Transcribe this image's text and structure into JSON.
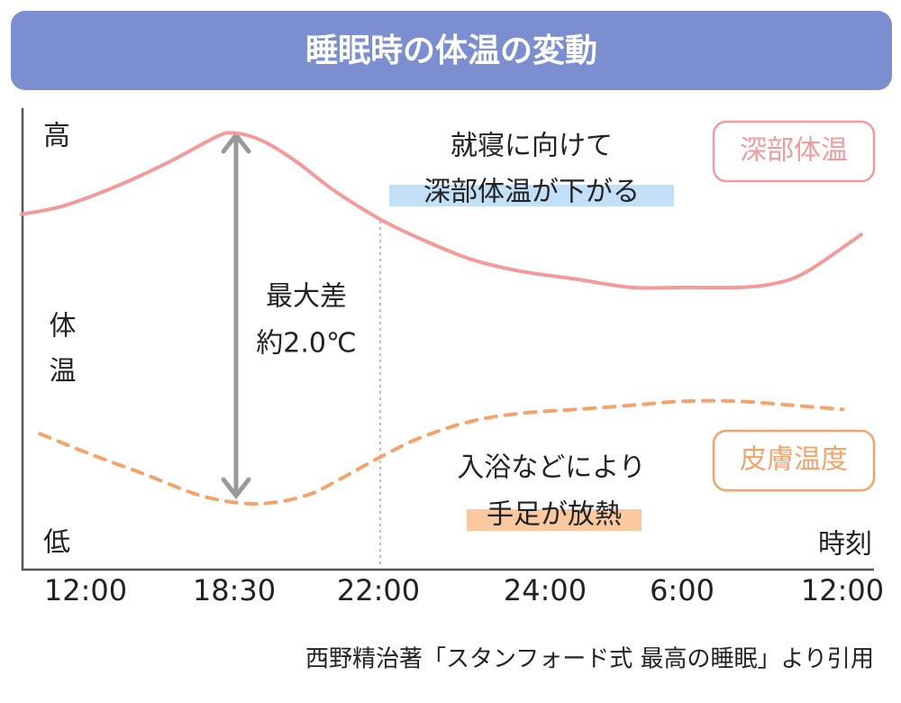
{
  "chart_data": {
    "type": "line",
    "title": "睡眠時の体温の変動",
    "ylabel": "体温",
    "xlabel": "時刻",
    "xlim": [
      -2.8,
      25.2
    ],
    "xticks": [
      {
        "value": 0,
        "label": "12:00"
      },
      {
        "value": 6.5,
        "label": "18:30"
      },
      {
        "value": 10,
        "label": "22:00"
      },
      {
        "value": 12,
        "label": "24:00"
      },
      {
        "value": 18,
        "label": "6:00"
      },
      {
        "value": 24,
        "label": "12:00"
      }
    ],
    "ylim": [
      0,
      10
    ],
    "yticks": [
      {
        "value": 10,
        "label": "高"
      },
      {
        "value": 0,
        "label": "低"
      }
    ],
    "series": [
      {
        "name": "深部体温",
        "color": "#f39a9a",
        "dashed": false,
        "x": [
          -2.8,
          -1.0,
          1.4,
          3.7,
          5.7,
          6.5,
          7.2,
          8.0,
          8.9,
          10,
          10.5,
          11.1,
          11.7,
          13.4,
          15.8,
          18.1,
          20.1,
          21.5,
          22.7,
          24.7
        ],
        "values": [
          8.1,
          8.3,
          8.8,
          9.4,
          10.0,
          10.1,
          9.9,
          9.4,
          8.7,
          8.0,
          7.5,
          7.0,
          6.7,
          6.5,
          6.3,
          6.3,
          6.3,
          6.4,
          6.7,
          7.6
        ]
      },
      {
        "name": "皮膚温度",
        "color": "#f4a36a",
        "dashed": true,
        "x": [
          -2.0,
          0.2,
          2.6,
          4.9,
          6.6,
          7.4,
          8.3,
          9.1,
          10,
          10.5,
          11.1,
          11.7,
          13.4,
          15.8,
          18.1,
          20.1,
          22.1,
          24
        ],
        "values": [
          2.7,
          2.2,
          1.7,
          1.2,
          1.0,
          1.0,
          1.2,
          1.6,
          2.1,
          2.6,
          3.0,
          3.2,
          3.3,
          3.4,
          3.5,
          3.5,
          3.4,
          3.3
        ]
      }
    ],
    "annotations": [
      "就寝に向けて",
      "深部体温が下がる",
      "最大差",
      "約2.0℃",
      "入浴などにより",
      "手足が放熱"
    ]
  },
  "source": "西野精治著「スタンフォード式 最高の睡眠」より引用"
}
